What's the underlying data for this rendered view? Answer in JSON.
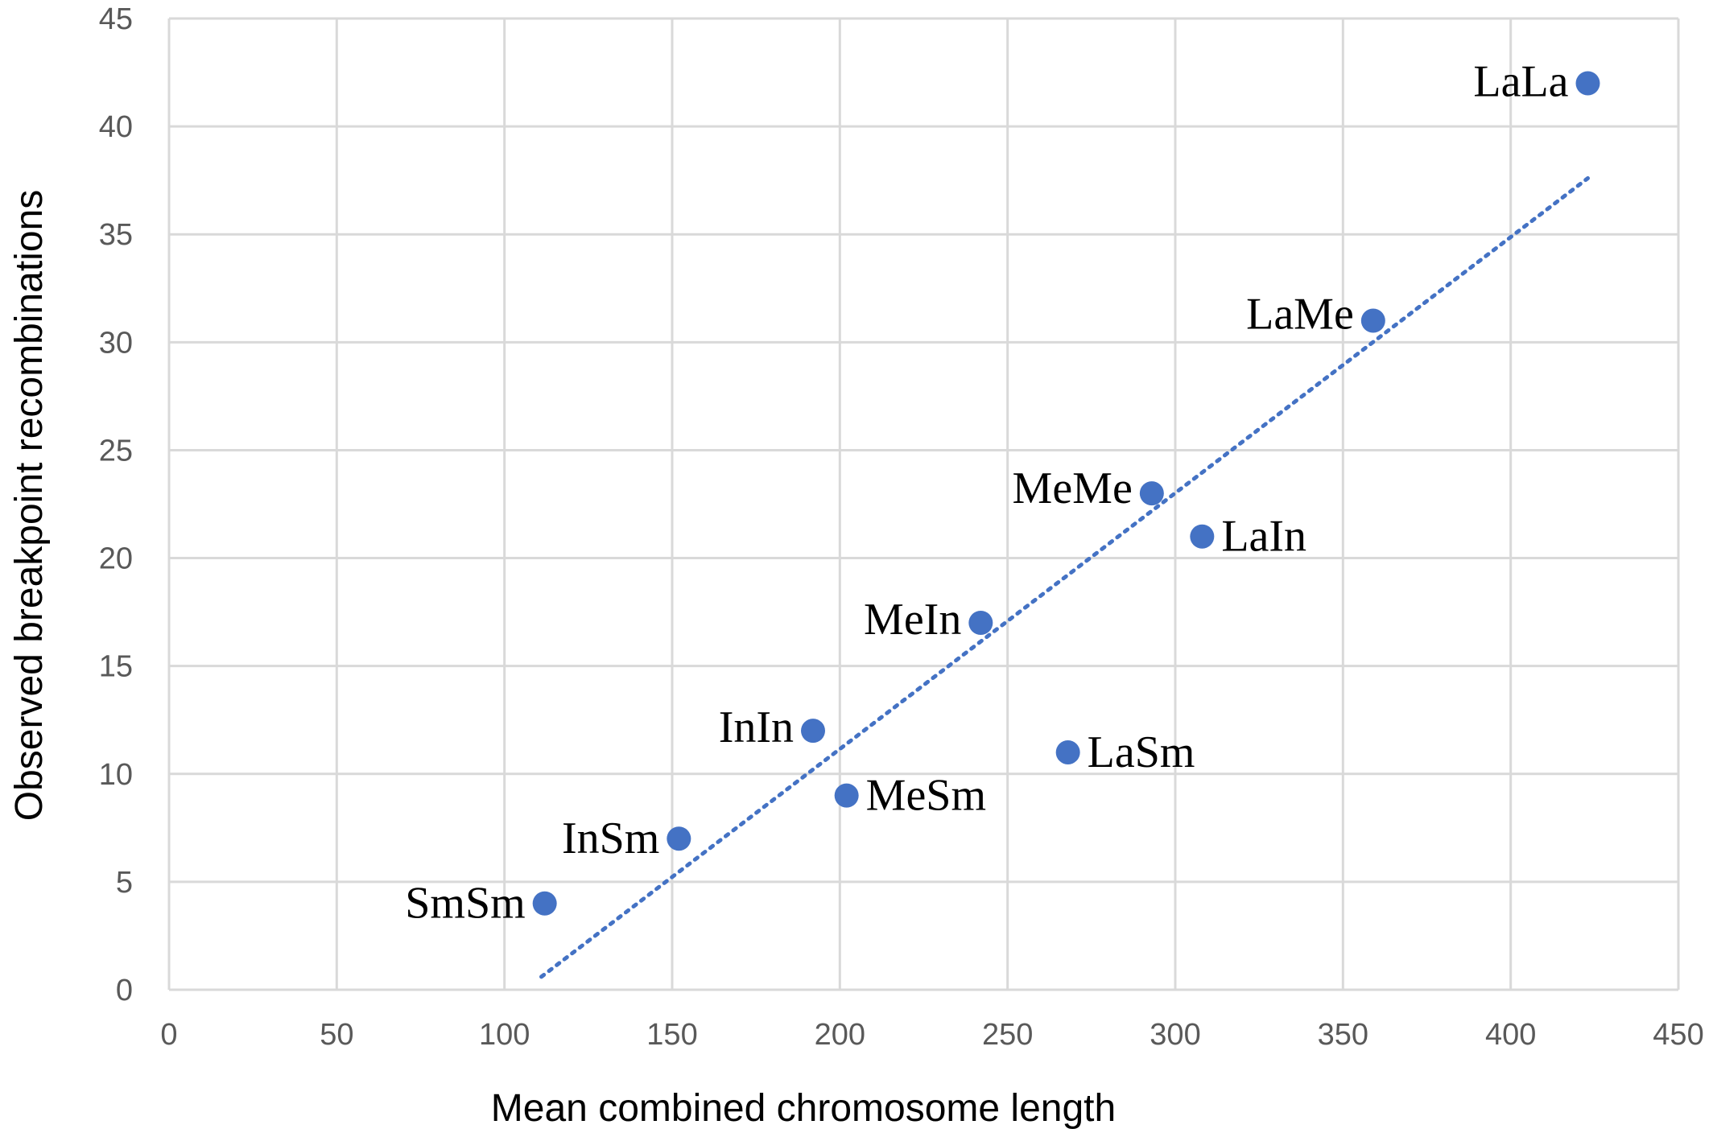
{
  "chart_data": {
    "type": "scatter",
    "title": "",
    "xlabel": "Mean combined chromosome length",
    "ylabel": "Observed breakpoint recombinations",
    "xlim": [
      0,
      450
    ],
    "ylim": [
      0,
      45
    ],
    "x_ticks": [
      0,
      50,
      100,
      150,
      200,
      250,
      300,
      350,
      400,
      450
    ],
    "y_ticks": [
      0,
      5,
      10,
      15,
      20,
      25,
      30,
      35,
      40,
      45
    ],
    "grid": true,
    "legend": "none",
    "series": [
      {
        "points": [
          {
            "label": "SmSm",
            "x": 112,
            "y": 4
          },
          {
            "label": "InSm",
            "x": 152,
            "y": 7
          },
          {
            "label": "MeSm",
            "x": 202,
            "y": 9
          },
          {
            "label": "InIn",
            "x": 192,
            "y": 12
          },
          {
            "label": "LaSm",
            "x": 268,
            "y": 11
          },
          {
            "label": "MeIn",
            "x": 242,
            "y": 17
          },
          {
            "label": "LaIn",
            "x": 308,
            "y": 21
          },
          {
            "label": "MeMe",
            "x": 293,
            "y": 23
          },
          {
            "label": "LaMe",
            "x": 359,
            "y": 31
          },
          {
            "label": "LaLa",
            "x": 423,
            "y": 42
          }
        ]
      }
    ],
    "trendline": {
      "type": "linear",
      "style": "dotted",
      "x_range": [
        111,
        423
      ],
      "y_values": [
        0.6,
        37.6
      ]
    },
    "colors": {
      "marker": "#4472c4",
      "trendline": "#4472c4",
      "grid": "#d9d9d9",
      "tick_text": "#595959"
    }
  }
}
